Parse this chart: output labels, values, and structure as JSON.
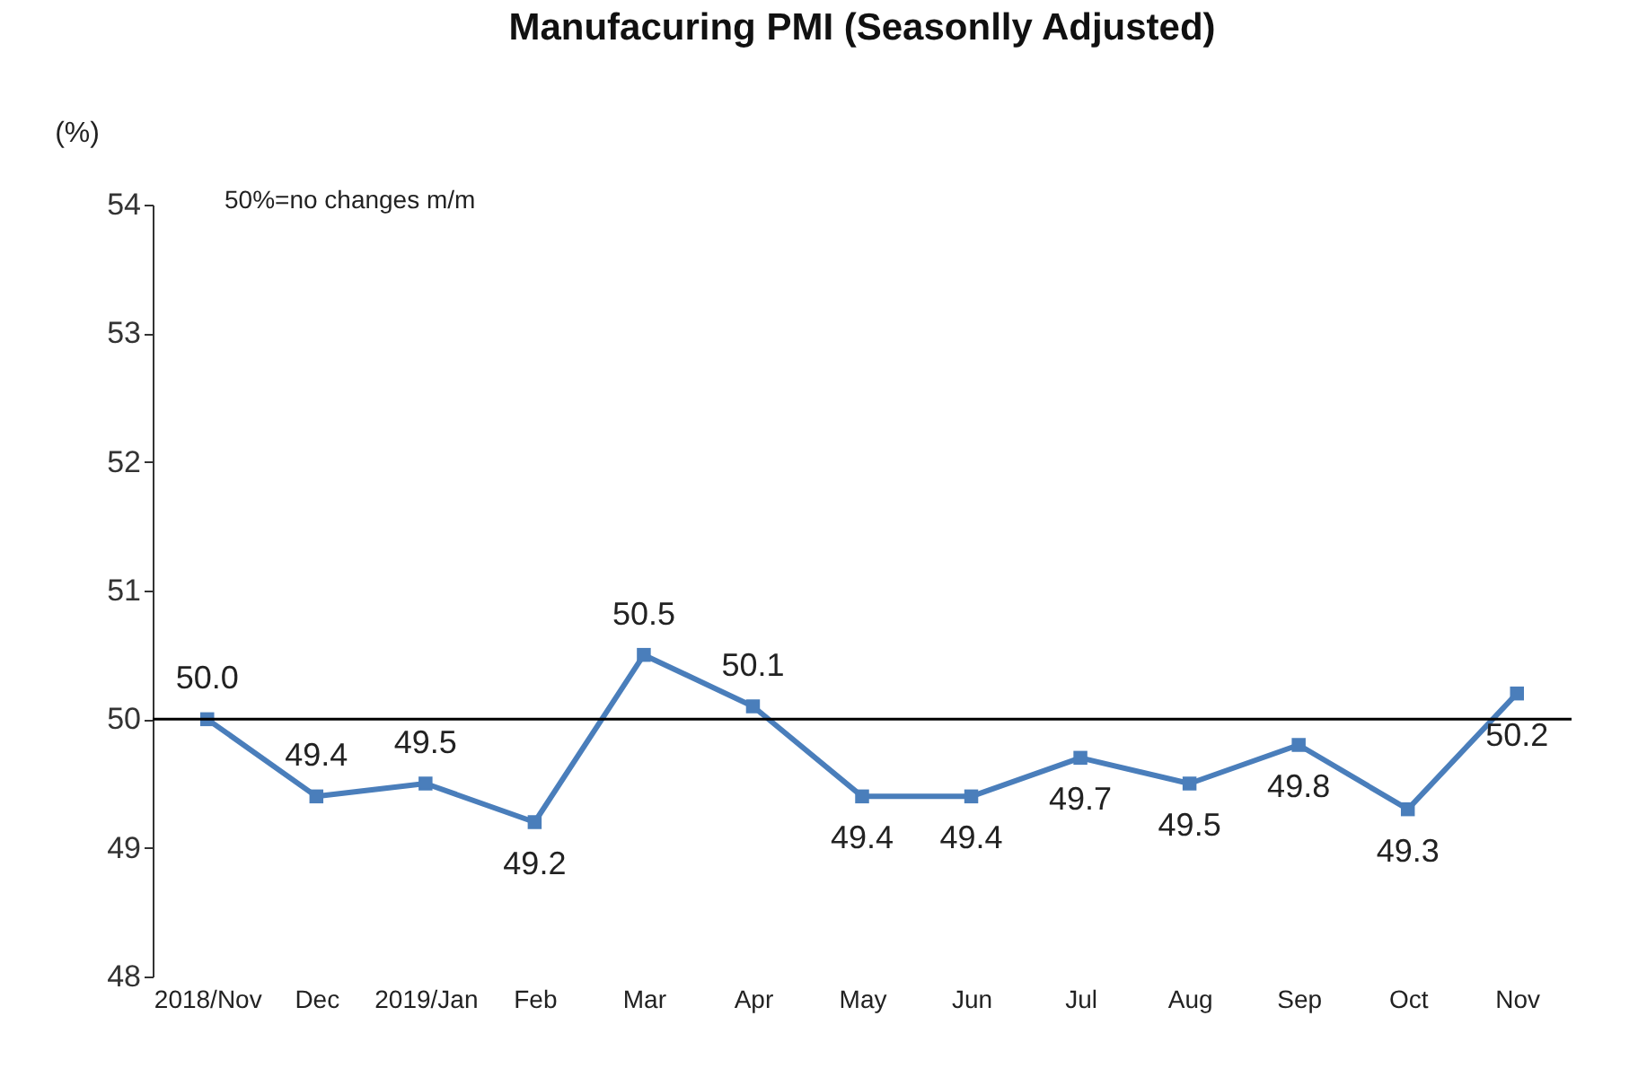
{
  "chart_data": {
    "type": "line",
    "title": "Manufacuring PMI (Seasonlly Adjusted)",
    "ylabel": "(%)",
    "categories": [
      "2018/Nov",
      "Dec",
      "2019/Jan",
      "Feb",
      "Mar",
      "Apr",
      "May",
      "Jun",
      "Jul",
      "Aug",
      "Sep",
      "Oct",
      "Nov"
    ],
    "series": [
      {
        "color": "#4a7ebb",
        "values": [
          50.0,
          49.4,
          49.5,
          49.2,
          50.5,
          50.1,
          49.4,
          49.4,
          49.7,
          49.5,
          49.8,
          49.3,
          50.2
        ],
        "value_labels": [
          "50.0",
          "49.4",
          "49.5",
          "49.2",
          "50.5",
          "50.1",
          "49.4",
          "49.4",
          "49.7",
          "49.5",
          "49.8",
          "49.3",
          "50.2"
        ]
      }
    ],
    "ylim": [
      48,
      54
    ],
    "yticks": [
      48,
      49,
      50,
      51,
      52,
      53,
      54
    ],
    "ref_lines": [
      {
        "axis": "y",
        "value": 50,
        "color": "#000000"
      }
    ],
    "annotations": [
      "50%=no changes  m/m"
    ],
    "marker": "square",
    "line_style": "solid",
    "grid": false
  }
}
